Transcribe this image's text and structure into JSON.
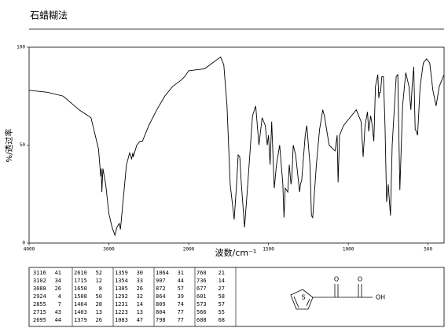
{
  "chart_data": {
    "type": "line",
    "title": "石蜡糊法",
    "x_label": "波数/cm⁻¹",
    "y_label": "%/透过率",
    "x": [
      4000,
      3771,
      3572,
      3373,
      3224,
      3130,
      3116,
      3110,
      3102,
      3095,
      3088,
      3075,
      3040,
      3000,
      2960,
      2924,
      2900,
      2870,
      2855,
      2830,
      2780,
      2740,
      2715,
      2700,
      2695,
      2650,
      2610,
      2580,
      2500,
      2400,
      2300,
      2200,
      2100,
      2050,
      2000,
      1900,
      1850,
      1800,
      1780,
      1760,
      1740,
      1715,
      1700,
      1690,
      1680,
      1670,
      1650,
      1630,
      1600,
      1580,
      1560,
      1540,
      1520,
      1508,
      1500,
      1490,
      1480,
      1464,
      1450,
      1430,
      1410,
      1403,
      1395,
      1379,
      1370,
      1359,
      1354,
      1345,
      1330,
      1305,
      1300,
      1292,
      1270,
      1260,
      1240,
      1231,
      1223,
      1200,
      1180,
      1160,
      1150,
      1120,
      1083,
      1070,
      1064,
      1055,
      1030,
      1000,
      950,
      920,
      907,
      895,
      880,
      872,
      860,
      850,
      840,
      830,
      815,
      809,
      804,
      798,
      790,
      780,
      770,
      760,
      750,
      736,
      725,
      700,
      690,
      677,
      660,
      640,
      620,
      608,
      600,
      590,
      581,
      573,
      566,
      550,
      530,
      510,
      490,
      470,
      450,
      430,
      400
    ],
    "series": [
      {
        "color": "#000000",
        "values": [
          78,
          77,
          75,
          68,
          64,
          48,
          41,
          38,
          34,
          38,
          26,
          38,
          30,
          15,
          8,
          4,
          8,
          10,
          7,
          18,
          40,
          46,
          43,
          46,
          44,
          50,
          52,
          52,
          60,
          68,
          75,
          80,
          83,
          85,
          88,
          89,
          92,
          95,
          91,
          70,
          30,
          12,
          30,
          45,
          44,
          30,
          8,
          30,
          65,
          70,
          50,
          64,
          60,
          50,
          55,
          40,
          62,
          28,
          40,
          50,
          30,
          13,
          28,
          26,
          40,
          30,
          33,
          50,
          45,
          26,
          30,
          32,
          55,
          60,
          40,
          14,
          13,
          40,
          58,
          68,
          65,
          50,
          47,
          55,
          31,
          55,
          60,
          63,
          68,
          62,
          44,
          60,
          67,
          57,
          65,
          60,
          52,
          80,
          86,
          74,
          77,
          77,
          85,
          85,
          60,
          21,
          30,
          14,
          50,
          85,
          86,
          27,
          70,
          87,
          80,
          68,
          80,
          90,
          58,
          57,
          55,
          80,
          92,
          94,
          92,
          78,
          70,
          80,
          86
        ]
      }
    ],
    "xlim": [
      4000,
      400
    ],
    "xticks": [
      4000,
      3000,
      2000,
      1500,
      1000,
      500
    ],
    "x_scale_break": 2000,
    "x_scale_ratio_below_break": 2,
    "ylim": [
      0,
      100
    ],
    "yticks": [
      0,
      50,
      100
    ]
  },
  "peak_table": {
    "columns": [
      [
        [
          3116,
          41
        ],
        [
          3102,
          34
        ],
        [
          3088,
          26
        ],
        [
          2924,
          4
        ],
        [
          2855,
          7
        ],
        [
          2715,
          43
        ],
        [
          2695,
          44
        ]
      ],
      [
        [
          2610,
          52
        ],
        [
          1715,
          12
        ],
        [
          1650,
          8
        ],
        [
          1508,
          50
        ],
        [
          1464,
          28
        ],
        [
          1403,
          13
        ],
        [
          1379,
          26
        ]
      ],
      [
        [
          1359,
          30
        ],
        [
          1354,
          33
        ],
        [
          1305,
          26
        ],
        [
          1292,
          32
        ],
        [
          1231,
          14
        ],
        [
          1223,
          13
        ],
        [
          1083,
          47
        ]
      ],
      [
        [
          1064,
          31
        ],
        [
          907,
          44
        ],
        [
          872,
          57
        ],
        [
          864,
          39
        ],
        [
          809,
          74
        ],
        [
          804,
          77
        ],
        [
          798,
          77
        ]
      ],
      [
        [
          760,
          21
        ],
        [
          736,
          14
        ],
        [
          677,
          27
        ],
        [
          601,
          58
        ],
        [
          573,
          57
        ],
        [
          566,
          55
        ],
        [
          608,
          68
        ]
      ]
    ]
  },
  "structure": {
    "atoms": [
      "S",
      "O",
      "O",
      "OH"
    ]
  }
}
